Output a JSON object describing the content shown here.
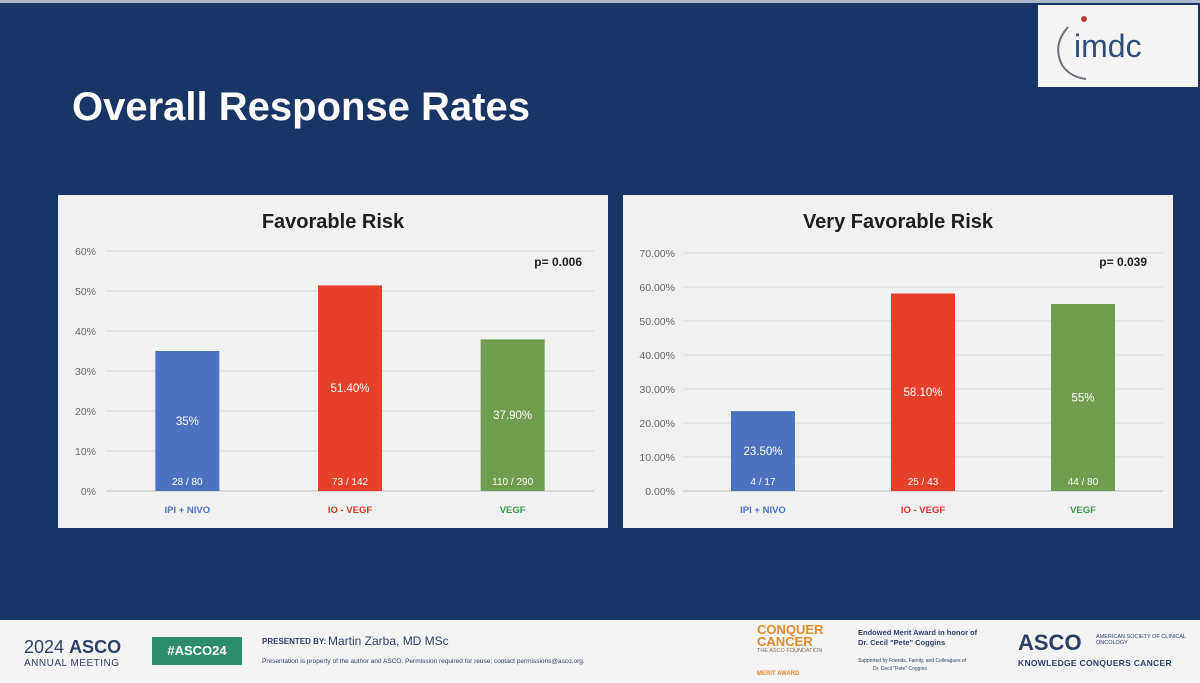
{
  "slide": {
    "title": "Overall Response Rates",
    "logo_text": "imdc"
  },
  "chart_data": [
    {
      "type": "bar",
      "title": "Favorable Risk",
      "annotation": "p= 0.006",
      "categories": [
        "IPI + NIVO",
        "IO - VEGF",
        "VEGF"
      ],
      "values": [
        35,
        51.4,
        37.9
      ],
      "value_labels": [
        "35%",
        "51.40%",
        "37.90%"
      ],
      "count_labels": [
        "28 / 80",
        "73 / 142",
        "110 / 290"
      ],
      "ylim": [
        0,
        60
      ],
      "yticks": [
        0,
        10,
        20,
        30,
        40,
        50,
        60
      ],
      "ytick_labels": [
        "0%",
        "10%",
        "20%",
        "30%",
        "40%",
        "50%",
        "60%"
      ],
      "colors": [
        "#4e73be",
        "#e6402a",
        "#6f9c4e"
      ],
      "category_colors": [
        "#4e73be",
        "#d8352a",
        "#3b9a44"
      ],
      "grid": true
    },
    {
      "type": "bar",
      "title": "Very Favorable Risk",
      "annotation": "p= 0.039",
      "categories": [
        "IPI + NIVO",
        "IO - VEGF",
        "VEGF"
      ],
      "values": [
        23.5,
        58.1,
        55
      ],
      "value_labels": [
        "23.50%",
        "58.10%",
        "55%"
      ],
      "count_labels": [
        "4 / 17",
        "25 / 43",
        "44 / 80"
      ],
      "ylim": [
        0,
        70
      ],
      "yticks": [
        0,
        10,
        20,
        30,
        40,
        50,
        60,
        70
      ],
      "ytick_labels": [
        "0.00%",
        "10.00%",
        "20.00%",
        "30.00%",
        "40.00%",
        "50.00%",
        "60.00%",
        "70.00%"
      ],
      "colors": [
        "#4e73be",
        "#e6402a",
        "#6f9c4e"
      ],
      "category_colors": [
        "#4e73be",
        "#d8352a",
        "#3b9a44"
      ],
      "grid": true
    }
  ],
  "footer": {
    "year": "2024",
    "asco": "ASCO",
    "annual_meeting": "ANNUAL MEETING",
    "hashtag": "#ASCO24",
    "presented_by": "PRESENTED BY:",
    "presenter": "Martin Zarba, MD MSc",
    "property_note": "Presentation is property of the author and ASCO. Permission required for reuse; contact permissions@asco.org.",
    "conquer": "CONQUER",
    "cancer": "CANCER",
    "foundation": "THE ASCO FOUNDATION",
    "merit_award": "MERIT AWARD",
    "endowed_line1": "Endowed Merit Award in honor of",
    "endowed_line2": "Dr. Cecil \"Pete\" Coggins",
    "supported_line1": "Supported by Friends, Family, and Colleagues of",
    "supported_line2": "Dr. Cecil \"Pete\" Coggins",
    "asco_logo": "ASCO",
    "society": "AMERICAN SOCIETY OF CLINICAL ONCOLOGY",
    "tagline": "KNOWLEDGE CONQUERS CANCER"
  }
}
